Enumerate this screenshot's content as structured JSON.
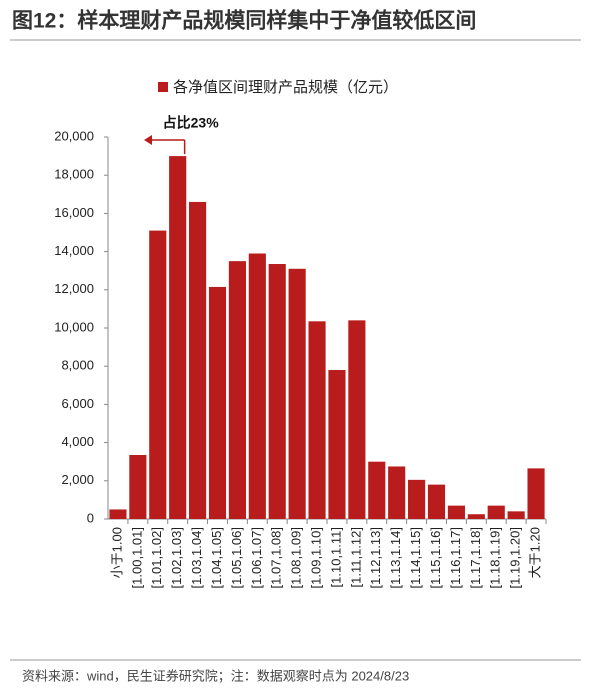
{
  "chart_data": {
    "type": "bar",
    "title": "图12：样本理财产品规模同样集中于净值较低区间",
    "legend": "各净值区间理财产品规模（亿元）",
    "annotation": "占比23%",
    "source": "资料来源：wind，民生证券研究院；注：数据观察时点为 2024/8/23",
    "color": "#b81c1c",
    "categories": [
      "小于1.00",
      "[1.00,1.01]",
      "[1.01,1.02]",
      "[1.02,1.03]",
      "[1.03,1.04]",
      "[1.04,1.05]",
      "[1.05,1.06]",
      "[1.06,1.07]",
      "[1.07,1.08]",
      "[1.08,1.09]",
      "[1.09,1.10]",
      "[1.10,1.11]",
      "[1.11,1.12]",
      "[1.12,1.13]",
      "[1.13,1.14]",
      "[1.14,1.15]",
      "[1.15,1.16]",
      "[1.16,1.17]",
      "[1.17,1.18]",
      "[1.18,1.19]",
      "[1.19,1.20]",
      "大于1.20"
    ],
    "values": [
      500,
      3350,
      15100,
      19000,
      16600,
      12150,
      13500,
      13900,
      13350,
      13100,
      10350,
      7800,
      10400,
      3000,
      2750,
      2050,
      1800,
      700,
      250,
      700,
      400,
      2650
    ],
    "ylim": [
      0,
      20000
    ],
    "yticks": [
      0,
      {
        "value": 2000,
        "label": "2,000"
      },
      {
        "value": 4000,
        "label": "4,000"
      },
      {
        "value": 6000,
        "label": "6,000"
      },
      {
        "value": 8000,
        "label": "8,000"
      },
      {
        "value": 10000,
        "label": "10,000"
      },
      {
        "value": 12000,
        "label": "12,000"
      },
      {
        "value": 14000,
        "label": "14,000"
      },
      {
        "value": 16000,
        "label": "16,000"
      },
      {
        "value": 18000,
        "label": "18,000"
      },
      {
        "value": 20000,
        "label": "20,000"
      }
    ]
  }
}
